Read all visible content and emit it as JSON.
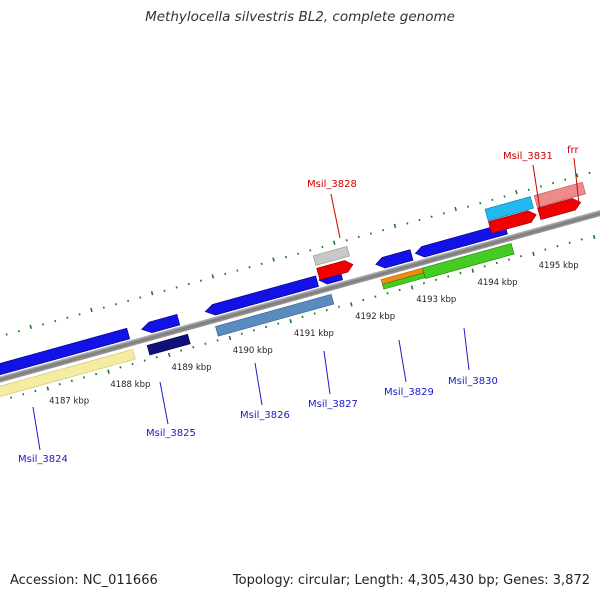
{
  "title": "Methylocella silvestris BL2, complete genome",
  "footer": {
    "accession": "Accession: NC_011666",
    "stats": "Topology: circular; Length: 4,305,430 bp; Genes: 3,872"
  },
  "colors": {
    "backbone": "#8a8a8a",
    "tick": "#1e7a1e",
    "upper_label": "#cc0000",
    "lower_label": "#1a1acc"
  },
  "axis": {
    "unit": "kbp",
    "labels": [
      "4187 kbp",
      "4188 kbp",
      "4189 kbp",
      "4190 kbp",
      "4191 kbp",
      "4192 kbp",
      "4193 kbp",
      "4194 kbp",
      "4195 kbp"
    ]
  },
  "genes": [
    {
      "name": "Msil_3824",
      "label": "Msil_3824",
      "side": "lower",
      "color": "#0a0adf"
    },
    {
      "name": "Msil_3825",
      "label": "Msil_3825",
      "side": "lower",
      "color": "#0a0adf"
    },
    {
      "name": "Msil_3826",
      "label": "Msil_3826",
      "side": "lower",
      "color": "#0a0adf"
    },
    {
      "name": "Msil_3827",
      "label": "Msil_3827",
      "side": "lower",
      "color": "#0a0adf"
    },
    {
      "name": "Msil_3828",
      "label": "Msil_3828",
      "side": "upper",
      "color": "#e00000"
    },
    {
      "name": "Msil_3829",
      "label": "Msil_3829",
      "side": "lower",
      "color": "#0a0adf"
    },
    {
      "name": "Msil_3830",
      "label": "Msil_3830",
      "side": "lower",
      "color": "#0a0adf"
    },
    {
      "name": "Msil_3831",
      "label": "Msil_3831",
      "side": "upper",
      "color": "#e00000"
    },
    {
      "name": "frr",
      "label": "frr",
      "side": "upper",
      "color": "#e00000"
    }
  ]
}
